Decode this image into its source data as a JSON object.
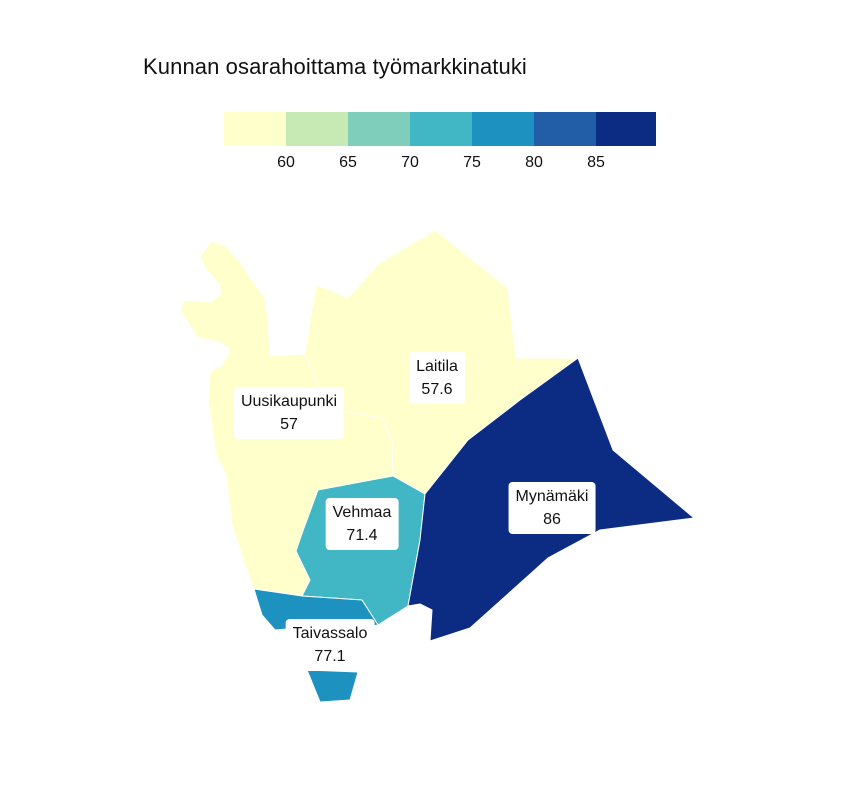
{
  "title": "Kunnan osarahoittama työmarkkinatuki",
  "legend": {
    "colors": [
      "#ffffcc",
      "#c7e9b4",
      "#7fcdbb",
      "#41b6c4",
      "#1d91c0",
      "#225ea8",
      "#0c2c84"
    ],
    "ticks": [
      "60",
      "65",
      "70",
      "75",
      "80",
      "85"
    ]
  },
  "chart_data": {
    "type": "choropleth",
    "regions": [
      {
        "name": "Uusikaupunki",
        "value": 57,
        "value_label": "57",
        "color": "#ffffcc"
      },
      {
        "name": "Laitila",
        "value": 57.6,
        "value_label": "57.6",
        "color": "#ffffcc"
      },
      {
        "name": "Vehmaa",
        "value": 71.4,
        "value_label": "71.4",
        "color": "#41b6c4"
      },
      {
        "name": "Mynämäki",
        "value": 86,
        "value_label": "86",
        "color": "#0c2c84"
      },
      {
        "name": "Taivassalo",
        "value": 77.1,
        "value_label": "77.1",
        "color": "#1d91c0"
      }
    ]
  }
}
